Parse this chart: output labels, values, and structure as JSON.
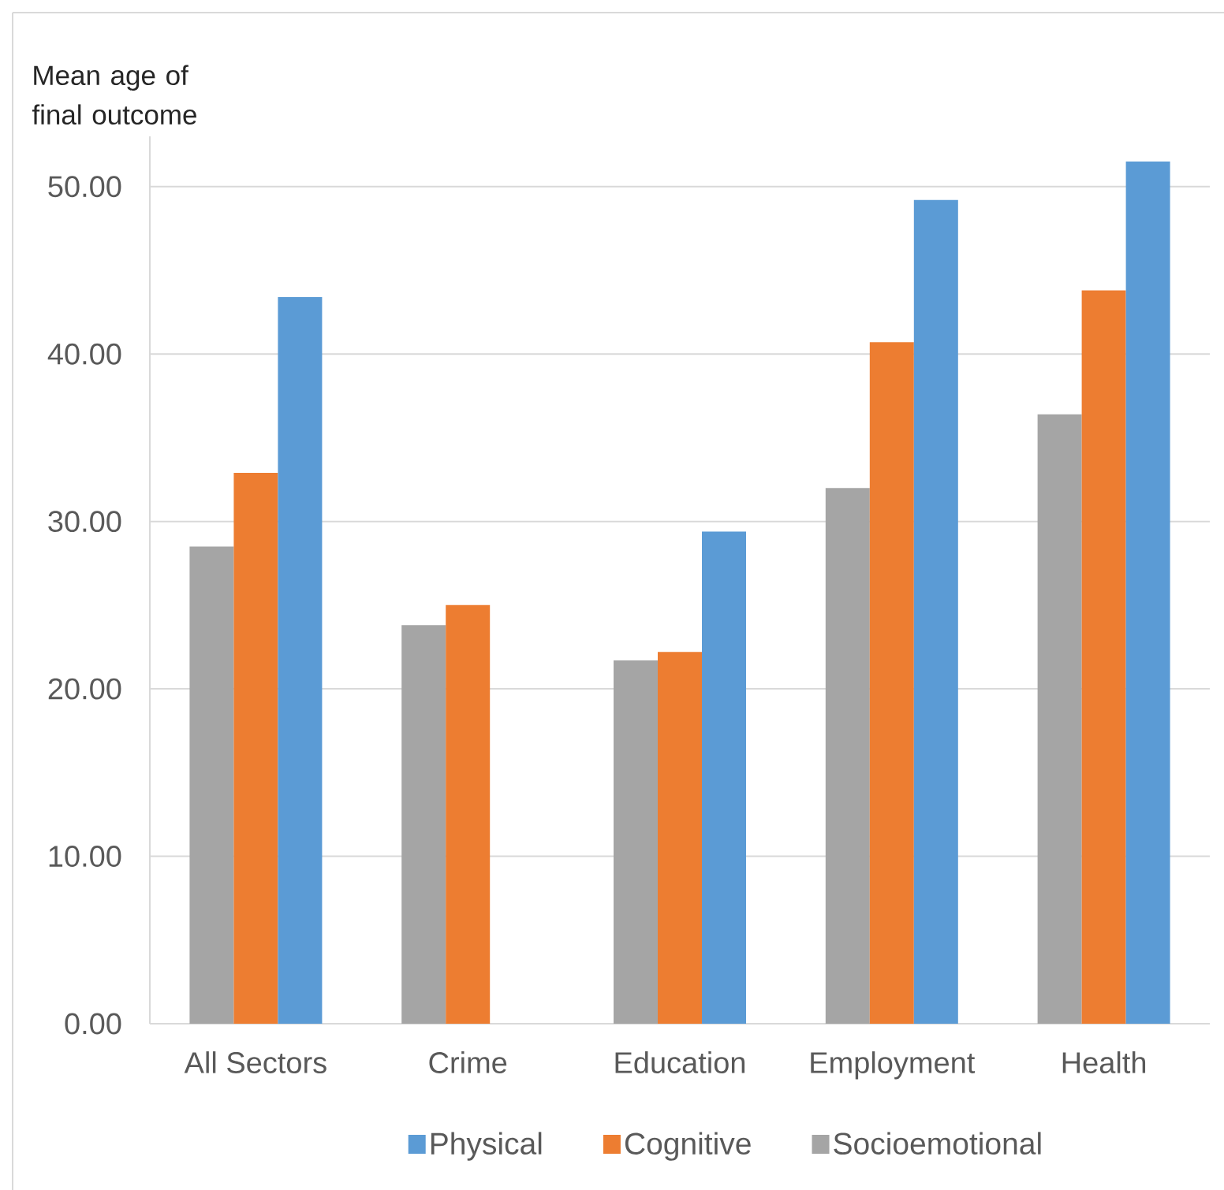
{
  "chart_data": {
    "type": "bar",
    "ylabel": "Mean age of final outcome",
    "categories": [
      "All Sectors",
      "Crime",
      "Education",
      "Employment",
      "Health"
    ],
    "series": [
      {
        "name": "Socioemotional",
        "color": "#a5a5a5",
        "values": [
          28.5,
          23.8,
          21.7,
          32.0,
          36.4
        ]
      },
      {
        "name": "Cognitive",
        "color": "#ed7d31",
        "values": [
          32.9,
          25.0,
          22.2,
          40.7,
          43.8
        ]
      },
      {
        "name": "Physical",
        "color": "#5b9bd5",
        "values": [
          43.4,
          null,
          29.4,
          49.2,
          51.5
        ]
      }
    ],
    "ylim": [
      0,
      53
    ],
    "yticks": [
      {
        "value": 0,
        "label": "0.00"
      },
      {
        "value": 10,
        "label": "10.00"
      },
      {
        "value": 20,
        "label": "20.00"
      },
      {
        "value": 30,
        "label": "30.00"
      },
      {
        "value": 40,
        "label": "40.00"
      },
      {
        "value": 50,
        "label": "50.00"
      }
    ],
    "grid": "y",
    "legend": "bottom"
  }
}
